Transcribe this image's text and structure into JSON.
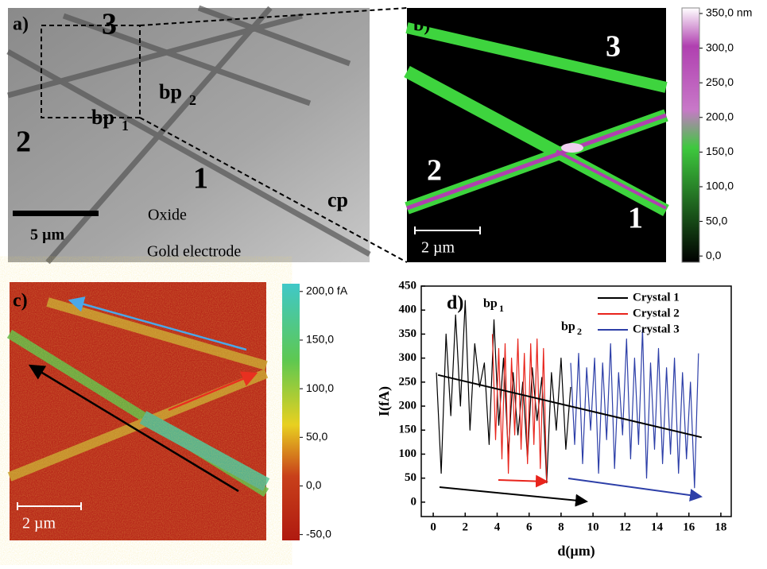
{
  "panel_a": {
    "tag": "a)",
    "crystals": [
      "3",
      "2",
      "1"
    ],
    "bp1": [
      "bp",
      "1"
    ],
    "bp2": [
      "bp",
      "2"
    ],
    "cp": "cp",
    "oxide": "Oxide",
    "electrode": "Gold electrode",
    "scale": "5 µm"
  },
  "panel_b": {
    "tag": "b)",
    "crystals": [
      "3",
      "2",
      "1"
    ],
    "scale": "2 µm",
    "colorbar": {
      "lim": [
        -9,
        358
      ],
      "ticks": [
        {
          "value": 350,
          "label": "350,0 nm"
        },
        {
          "value": 300,
          "label": "300,0"
        },
        {
          "value": 250,
          "label": "250,0"
        },
        {
          "value": 200,
          "label": "200,0"
        },
        {
          "value": 150,
          "label": "150,0"
        },
        {
          "value": 100,
          "label": "100,0"
        },
        {
          "value": 50,
          "label": "50,0"
        },
        {
          "value": 0,
          "label": "0,0"
        }
      ]
    }
  },
  "panel_c": {
    "tag": "c)",
    "scale": "2 µm",
    "colorbar": {
      "lim": [
        -56,
        208
      ],
      "ticks": [
        {
          "value": 200,
          "label": "200,0 fA"
        },
        {
          "value": 150,
          "label": "150,0"
        },
        {
          "value": 100,
          "label": "100,0"
        },
        {
          "value": 50,
          "label": "50,0"
        },
        {
          "value": 0,
          "label": "0,0"
        },
        {
          "value": -50,
          "label": "-50,0"
        }
      ]
    }
  },
  "chart_data": {
    "type": "line",
    "panel_label": "d)",
    "x_label": "d(µm)",
    "y_label": "I(fA)",
    "xlim": [
      -0.75,
      18.65
    ],
    "xticks": [
      0,
      2,
      4,
      6,
      8,
      10,
      12,
      14,
      16,
      18
    ],
    "ylim": [
      -30,
      450
    ],
    "yticks": [
      0,
      50,
      100,
      150,
      200,
      250,
      300,
      350,
      400,
      450
    ],
    "annotations": [
      [
        "bp",
        "1"
      ],
      [
        "bp",
        "2"
      ]
    ],
    "series": [
      {
        "name": "Crystal 1",
        "color": "#000000",
        "x": [
          0.2,
          0.5,
          0.8,
          1.1,
          1.4,
          1.7,
          2.0,
          2.3,
          2.6,
          2.9,
          3.2,
          3.5,
          3.8,
          4.1,
          4.4,
          4.7,
          5.0,
          5.3,
          5.6,
          5.9,
          6.2,
          6.5,
          6.8,
          7.1,
          7.4,
          7.7,
          8.0,
          8.3,
          8.6
        ],
        "values": [
          270,
          60,
          350,
          180,
          390,
          200,
          420,
          150,
          330,
          240,
          290,
          120,
          380,
          160,
          300,
          100,
          270,
          140,
          250,
          90,
          280,
          170,
          260,
          40,
          270,
          150,
          300,
          110,
          240
        ]
      },
      {
        "name": "Crystal 2",
        "color": "#e8241c",
        "x": [
          3.7,
          3.9,
          4.1,
          4.3,
          4.5,
          4.7,
          4.9,
          5.1,
          5.3,
          5.5,
          5.7,
          5.9,
          6.1,
          6.3,
          6.5,
          6.7,
          6.9,
          7.1
        ],
        "values": [
          350,
          130,
          320,
          90,
          330,
          60,
          300,
          140,
          340,
          110,
          310,
          80,
          330,
          120,
          340,
          70,
          320,
          40
        ]
      },
      {
        "name": "Crystal 3",
        "color": "#2d3fa8",
        "x": [
          8.6,
          8.85,
          9.1,
          9.35,
          9.6,
          9.85,
          10.1,
          10.35,
          10.6,
          10.85,
          11.1,
          11.35,
          11.6,
          11.85,
          12.1,
          12.35,
          12.6,
          12.85,
          13.1,
          13.35,
          13.6,
          13.85,
          14.1,
          14.35,
          14.6,
          14.85,
          15.1,
          15.35,
          15.6,
          15.85,
          16.1,
          16.35,
          16.6
        ],
        "values": [
          290,
          120,
          310,
          80,
          280,
          150,
          300,
          60,
          290,
          130,
          330,
          70,
          270,
          140,
          340,
          90,
          300,
          120,
          360,
          50,
          290,
          110,
          320,
          80,
          280,
          100,
          300,
          60,
          270,
          90,
          250,
          30,
          310
        ]
      }
    ],
    "trend": {
      "color": "#000000",
      "x": [
        0.3,
        16.8
      ],
      "values": [
        265,
        135
      ]
    }
  }
}
